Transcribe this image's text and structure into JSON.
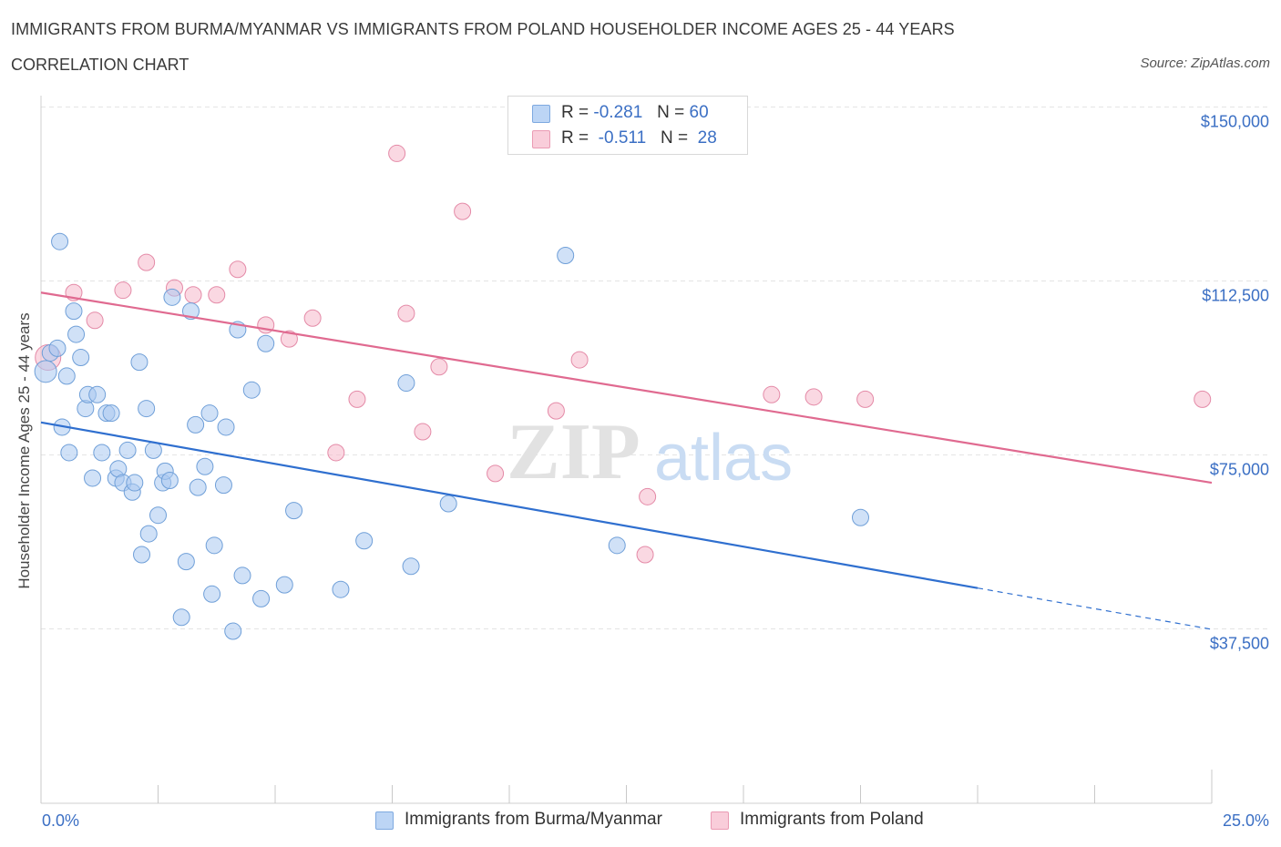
{
  "header": {
    "title": "IMMIGRANTS FROM BURMA/MYANMAR VS IMMIGRANTS FROM POLAND HOUSEHOLDER INCOME AGES 25 - 44 YEARS",
    "subtitle": "CORRELATION CHART",
    "source": "Source: ZipAtlas.com"
  },
  "legend": {
    "rows": [
      {
        "r_label": "R =",
        "r_value": "-0.281",
        "n_label": "N =",
        "n_value": "60"
      },
      {
        "r_label": "R =",
        "r_value": "-0.511",
        "n_label": "N =",
        "n_value": "28"
      }
    ]
  },
  "watermark": {
    "zip": "ZIP",
    "atlas": "atlas"
  },
  "colors": {
    "burma_fill": "#a9c8f0",
    "burma_stroke": "#6f9fd8",
    "burma_line": "#2f6fcf",
    "poland_fill": "#f5b8cb",
    "poland_stroke": "#e48aa7",
    "poland_line": "#e06a90",
    "tick_text": "#3b6fc4",
    "grid": "#e4e4e4"
  },
  "chart_data": {
    "type": "scatter",
    "title": "IMMIGRANTS FROM BURMA/MYANMAR VS IMMIGRANTS FROM POLAND HOUSEHOLDER INCOME AGES 25 - 44 YEARS",
    "subtitle": "CORRELATION CHART",
    "xlabel": "",
    "ylabel": "Householder Income Ages 25 - 44 years",
    "xlim": [
      0,
      25
    ],
    "ylim": [
      0,
      150000
    ],
    "x_tick_labels": [
      {
        "value": 0,
        "label": "0.0%"
      },
      {
        "value": 25,
        "label": "25.0%"
      }
    ],
    "y_ticks": [
      {
        "value": 150000,
        "label": "$150,000"
      },
      {
        "value": 112500,
        "label": "$112,500"
      },
      {
        "value": 75000,
        "label": "$75,000"
      },
      {
        "value": 37500,
        "label": "$37,500"
      }
    ],
    "grid": true,
    "legend_position": "top-center",
    "series": [
      {
        "name": "Immigrants from Burma/Myanmar",
        "color": "#a9c8f0",
        "r": -0.281,
        "n": 60,
        "trend": {
          "x0": 0,
          "y0": 82000,
          "x1": 20,
          "y1": 46300,
          "dashed_to_x": 25,
          "dashed_to_y": 37400
        },
        "points": [
          [
            0.1,
            93000
          ],
          [
            0.2,
            97000
          ],
          [
            0.35,
            98000
          ],
          [
            0.4,
            121000
          ],
          [
            0.45,
            81000
          ],
          [
            0.6,
            75500
          ],
          [
            0.7,
            106000
          ],
          [
            0.75,
            101000
          ],
          [
            0.85,
            96000
          ],
          [
            0.95,
            85000
          ],
          [
            1.0,
            88000
          ],
          [
            1.1,
            70000
          ],
          [
            1.2,
            88000
          ],
          [
            1.3,
            75500
          ],
          [
            1.4,
            84000
          ],
          [
            1.5,
            84000
          ],
          [
            1.6,
            70000
          ],
          [
            1.65,
            72000
          ],
          [
            1.75,
            69000
          ],
          [
            1.85,
            76000
          ],
          [
            1.95,
            67000
          ],
          [
            2.0,
            69000
          ],
          [
            2.1,
            95000
          ],
          [
            2.15,
            53500
          ],
          [
            2.25,
            85000
          ],
          [
            2.3,
            58000
          ],
          [
            2.4,
            76000
          ],
          [
            2.5,
            62000
          ],
          [
            2.6,
            69000
          ],
          [
            2.65,
            71500
          ],
          [
            2.75,
            69500
          ],
          [
            2.8,
            109000
          ],
          [
            3.0,
            40000
          ],
          [
            3.1,
            52000
          ],
          [
            3.2,
            106000
          ],
          [
            3.3,
            81500
          ],
          [
            3.35,
            68000
          ],
          [
            3.5,
            72500
          ],
          [
            3.6,
            84000
          ],
          [
            3.65,
            45000
          ],
          [
            3.7,
            55500
          ],
          [
            3.9,
            68500
          ],
          [
            3.95,
            81000
          ],
          [
            4.1,
            37000
          ],
          [
            4.2,
            102000
          ],
          [
            4.3,
            49000
          ],
          [
            4.5,
            89000
          ],
          [
            4.7,
            44000
          ],
          [
            4.8,
            99000
          ],
          [
            5.2,
            47000
          ],
          [
            5.4,
            63000
          ],
          [
            6.4,
            46000
          ],
          [
            6.9,
            56500
          ],
          [
            7.8,
            90500
          ],
          [
            7.9,
            51000
          ],
          [
            8.7,
            64500
          ],
          [
            11.2,
            118000
          ],
          [
            12.3,
            55500
          ],
          [
            17.5,
            61500
          ],
          [
            0.55,
            92000
          ]
        ]
      },
      {
        "name": "Immigrants from Poland",
        "color": "#f5b8cb",
        "r": -0.511,
        "n": 28,
        "trend": {
          "x0": 0,
          "y0": 110000,
          "x1": 25,
          "y1": 69000
        },
        "points": [
          [
            0.15,
            96000
          ],
          [
            0.7,
            110000
          ],
          [
            1.15,
            104000
          ],
          [
            1.75,
            110500
          ],
          [
            2.25,
            116500
          ],
          [
            2.85,
            111000
          ],
          [
            3.25,
            109500
          ],
          [
            3.75,
            109500
          ],
          [
            4.2,
            115000
          ],
          [
            4.8,
            103000
          ],
          [
            5.3,
            100000
          ],
          [
            5.8,
            104500
          ],
          [
            6.3,
            75500
          ],
          [
            6.75,
            87000
          ],
          [
            7.6,
            140000
          ],
          [
            7.8,
            105500
          ],
          [
            8.15,
            80000
          ],
          [
            8.5,
            94000
          ],
          [
            9.0,
            127500
          ],
          [
            9.7,
            71000
          ],
          [
            11.0,
            84500
          ],
          [
            11.5,
            95500
          ],
          [
            12.9,
            53500
          ],
          [
            12.95,
            66000
          ],
          [
            15.6,
            88000
          ],
          [
            16.5,
            87500
          ],
          [
            17.6,
            87000
          ],
          [
            24.8,
            87000
          ]
        ]
      }
    ]
  }
}
